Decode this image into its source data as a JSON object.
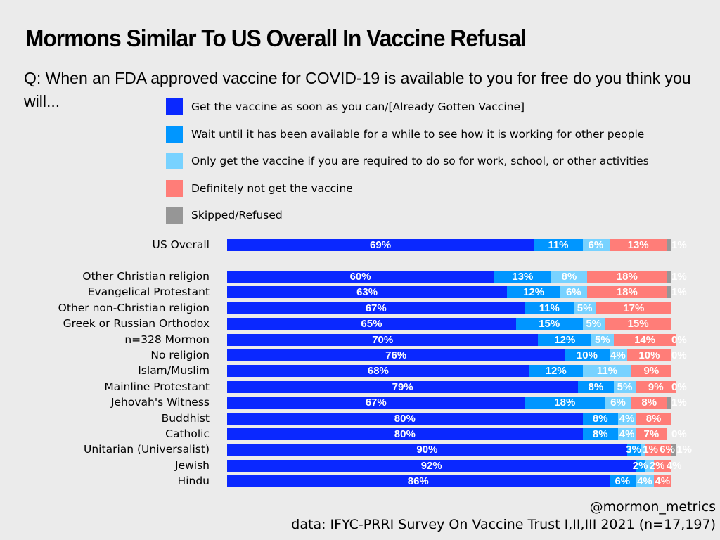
{
  "title": "Mormons Similar To US Overall In Vaccine Refusal",
  "footer": {
    "handle": "@mormon_metrics",
    "source": "data: IFYC-PRRI Survey On Vaccine Trust I,II,III 2021 (n=17,197)"
  },
  "chart_data": {
    "type": "bar",
    "orientation": "horizontal-stacked",
    "title": "Mormons Similar To US Overall In Vaccine Refusal",
    "subtitle": "Q: When an FDA approved vaccine for COVID-19 is available to you for free do you think you will...",
    "series": [
      {
        "name": "Get the vaccine as soon as you can/[Already Gotten Vaccine]",
        "color": "#0a28ff",
        "values": [
          69,
          60,
          63,
          67,
          65,
          70,
          76,
          68,
          79,
          67,
          80,
          80,
          90,
          92,
          86
        ]
      },
      {
        "name": "Wait until it has been available for a while to see how it is working for other people",
        "color": "#0096ff",
        "values": [
          11,
          13,
          12,
          11,
          15,
          12,
          10,
          12,
          8,
          18,
          8,
          8,
          3,
          2,
          6
        ]
      },
      {
        "name": "Only get the vaccine if you are required to do so for work, school, or other activities",
        "color": "#78d2ff",
        "values": [
          6,
          8,
          6,
          5,
          5,
          5,
          4,
          11,
          5,
          6,
          4,
          4,
          1,
          2,
          4
        ]
      },
      {
        "name": "Definitely not get the vaccine",
        "color": "#ff7d78",
        "values": [
          13,
          18,
          18,
          17,
          15,
          14,
          10,
          9,
          9,
          8,
          8,
          7,
          6,
          4,
          4
        ]
      },
      {
        "name": "Skipped/Refused",
        "color": "#969696",
        "values": [
          1,
          1,
          1,
          0,
          0,
          0,
          0,
          0,
          0,
          1,
          0,
          0,
          1,
          0,
          0
        ]
      }
    ],
    "categories": [
      "US Overall",
      "Other Christian religion",
      "Evangelical Protestant",
      "Other non-Christian religion",
      "Greek or Russian Orthodox",
      "n=328 Mormon",
      "No religion",
      "Islam/Muslim",
      "Mainline Protestant",
      "Jehovah's Witness",
      "Buddhist",
      "Catholic",
      "Unitarian (Universalist)",
      "Jewish",
      "Hindu"
    ],
    "skipped_label_shown": [
      true,
      true,
      true,
      false,
      false,
      true,
      true,
      false,
      true,
      true,
      false,
      true,
      true,
      false,
      false
    ],
    "unit": "%",
    "xlim": [
      0,
      100
    ]
  }
}
